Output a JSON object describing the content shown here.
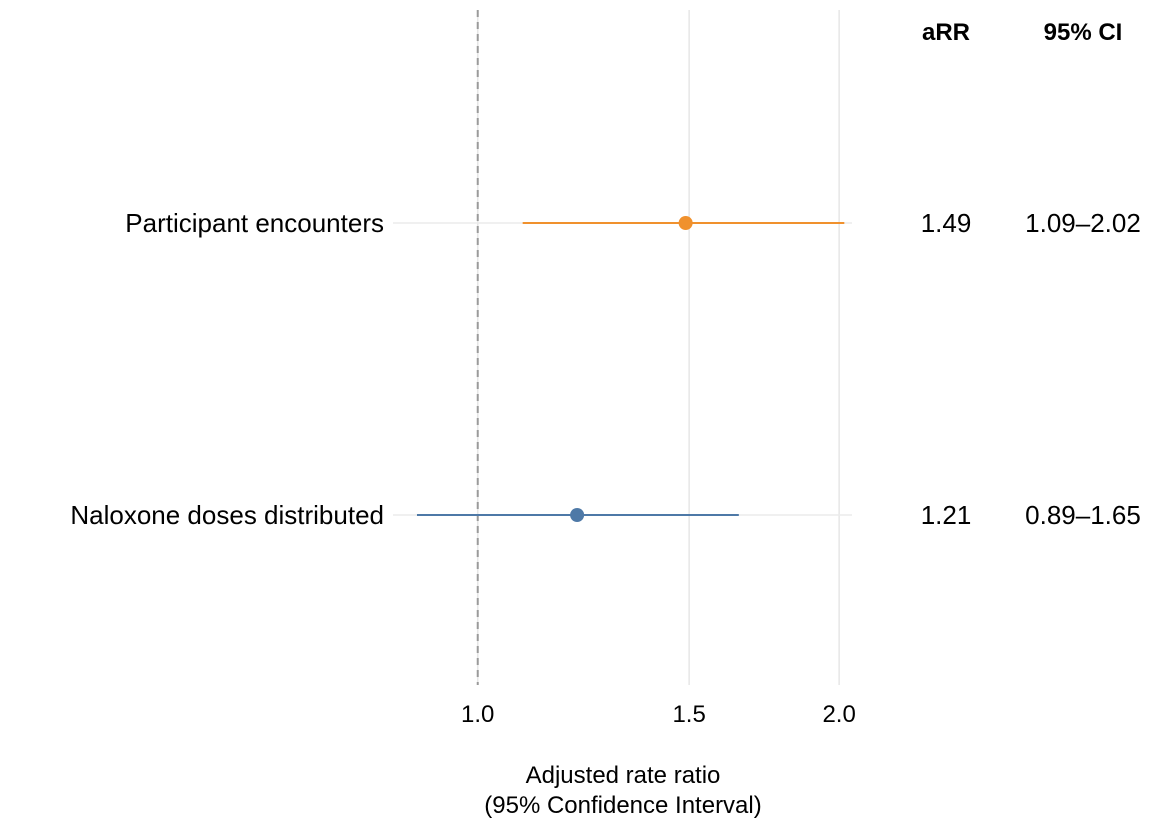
{
  "chart_data": {
    "type": "forest",
    "xlabel_line1": "Adjusted rate ratio",
    "xlabel_line2": "(95% Confidence Interval)",
    "xlim": [
      0.85,
      2.05
    ],
    "x_scale": "log",
    "xticks": [
      1.0,
      1.5,
      2.0
    ],
    "xtick_labels": [
      "1.0",
      "1.5",
      "2.0"
    ],
    "reference_line": 1.0,
    "grid": "vertical-major",
    "columns": {
      "estimate_header": "aRR",
      "ci_header": "95% CI"
    },
    "rows": [
      {
        "label": "Participant encounters",
        "estimate": 1.49,
        "lower": 1.09,
        "upper": 2.02,
        "estimate_text": "1.49",
        "ci_text": "1.09–2.02",
        "color": "#F0912D"
      },
      {
        "label": "Naloxone doses distributed",
        "estimate": 1.21,
        "lower": 0.89,
        "upper": 1.65,
        "estimate_text": "1.21",
        "ci_text": "0.89–1.65",
        "color": "#4E79A7"
      }
    ]
  }
}
